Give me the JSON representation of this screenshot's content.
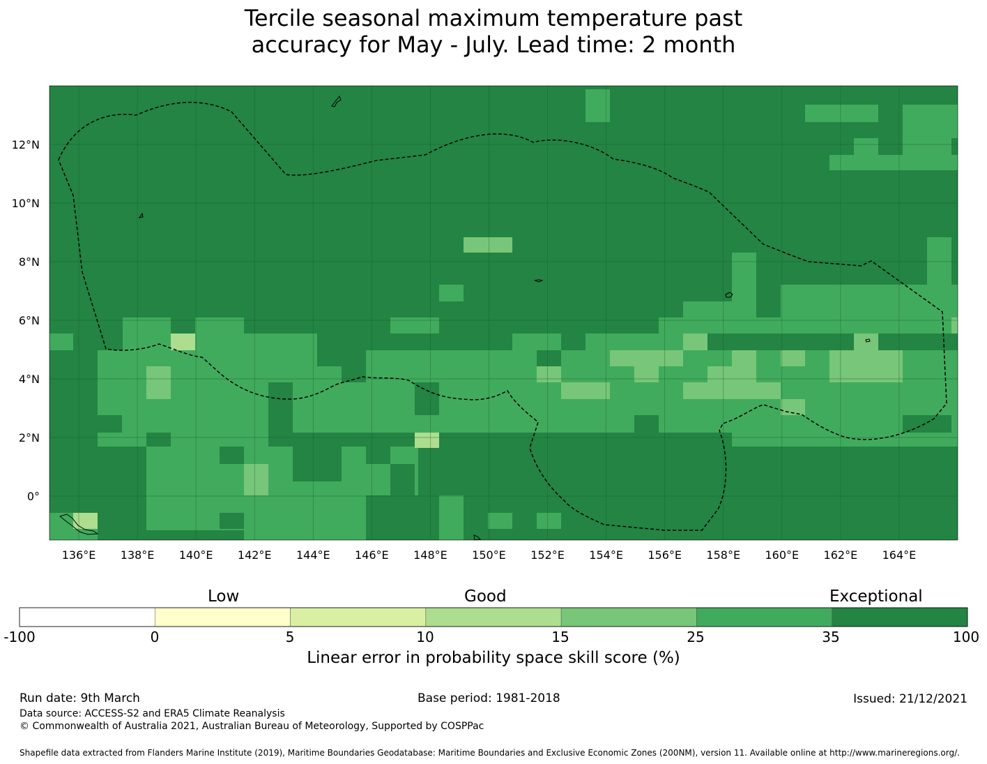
{
  "title": {
    "line1": "Tercile seasonal maximum temperature past",
    "line2": "accuracy for May - July. Lead time: 2 month"
  },
  "map": {
    "type": "gridded skill-score map",
    "lon_range": [
      135,
      166
    ],
    "lat_range": [
      -1.5,
      14
    ],
    "grid_cell_deg": 0.833,
    "lon_ticks": [
      "136°E",
      "138°E",
      "140°E",
      "142°E",
      "144°E",
      "146°E",
      "148°E",
      "150°E",
      "152°E",
      "154°E",
      "156°E",
      "158°E",
      "160°E",
      "162°E",
      "164°E"
    ],
    "lat_ticks": [
      "12°N",
      "10°N",
      "8°N",
      "6°N",
      "4°N",
      "2°N",
      "0°"
    ],
    "eez_boundary": "dashed",
    "gridlines": true
  },
  "colorbar": {
    "categories": [
      "Low",
      "Good",
      "Exceptional"
    ],
    "tick_labels": [
      "-100",
      "0",
      "5",
      "10",
      "15",
      "25",
      "35",
      "100"
    ],
    "colors": [
      "#ffffff",
      "#ffffcc",
      "#d9f0a3",
      "#addd8e",
      "#78c679",
      "#41ab5d",
      "#238443"
    ],
    "label": "Linear error in probability space skill score (%)"
  },
  "footer": {
    "run_date": "Run date: 9th March",
    "base_period": "Base period: 1981-2018",
    "issued": "Issued: 21/12/2021",
    "data_source": "Data source: ACCESS-S2 and ERA5 Climate Reanalysis",
    "copyright": "© Commonwealth of Australia 2021, Australian Bureau of Meteorology, Supported by COSPPac",
    "shapefile": "Shapefile data extracted from Flanders Marine Institute (2019), Maritime Boundaries Geodatabase: Maritime Boundaries and Exclusive Economic Zones (200NM), version 11. Available online at http://www.marineregions.org/."
  }
}
